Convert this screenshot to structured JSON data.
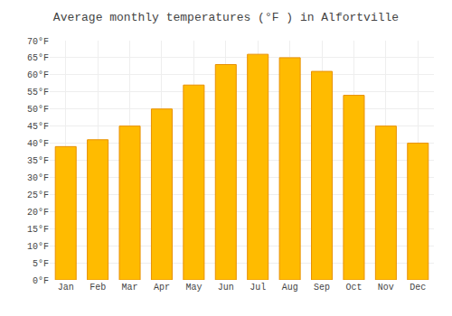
{
  "chart_data": {
    "type": "bar",
    "title": "Average monthly temperatures (°F ) in Alfortville",
    "categories": [
      "Jan",
      "Feb",
      "Mar",
      "Apr",
      "May",
      "Jun",
      "Jul",
      "Aug",
      "Sep",
      "Oct",
      "Nov",
      "Dec"
    ],
    "values": [
      39,
      41,
      45,
      50,
      57,
      63,
      66,
      65,
      61,
      54,
      45,
      40
    ],
    "color": "#FFBB00",
    "ylim": [
      0,
      70
    ],
    "yticks": [
      {
        "value": 0,
        "label": "0°F"
      },
      {
        "value": 5,
        "label": "5°F"
      },
      {
        "value": 10,
        "label": "10°F"
      },
      {
        "value": 15,
        "label": "15°F"
      },
      {
        "value": 20,
        "label": "20°F"
      },
      {
        "value": 25,
        "label": "25°F"
      },
      {
        "value": 30,
        "label": "30°F"
      },
      {
        "value": 35,
        "label": "35°F"
      },
      {
        "value": 40,
        "label": "40°F"
      },
      {
        "value": 45,
        "label": "45°F"
      },
      {
        "value": 50,
        "label": "50°F"
      },
      {
        "value": 55,
        "label": "55°F"
      },
      {
        "value": 60,
        "label": "60°F"
      },
      {
        "value": 65,
        "label": "65°F"
      },
      {
        "value": 70,
        "label": "70°F"
      }
    ],
    "grid": true
  }
}
